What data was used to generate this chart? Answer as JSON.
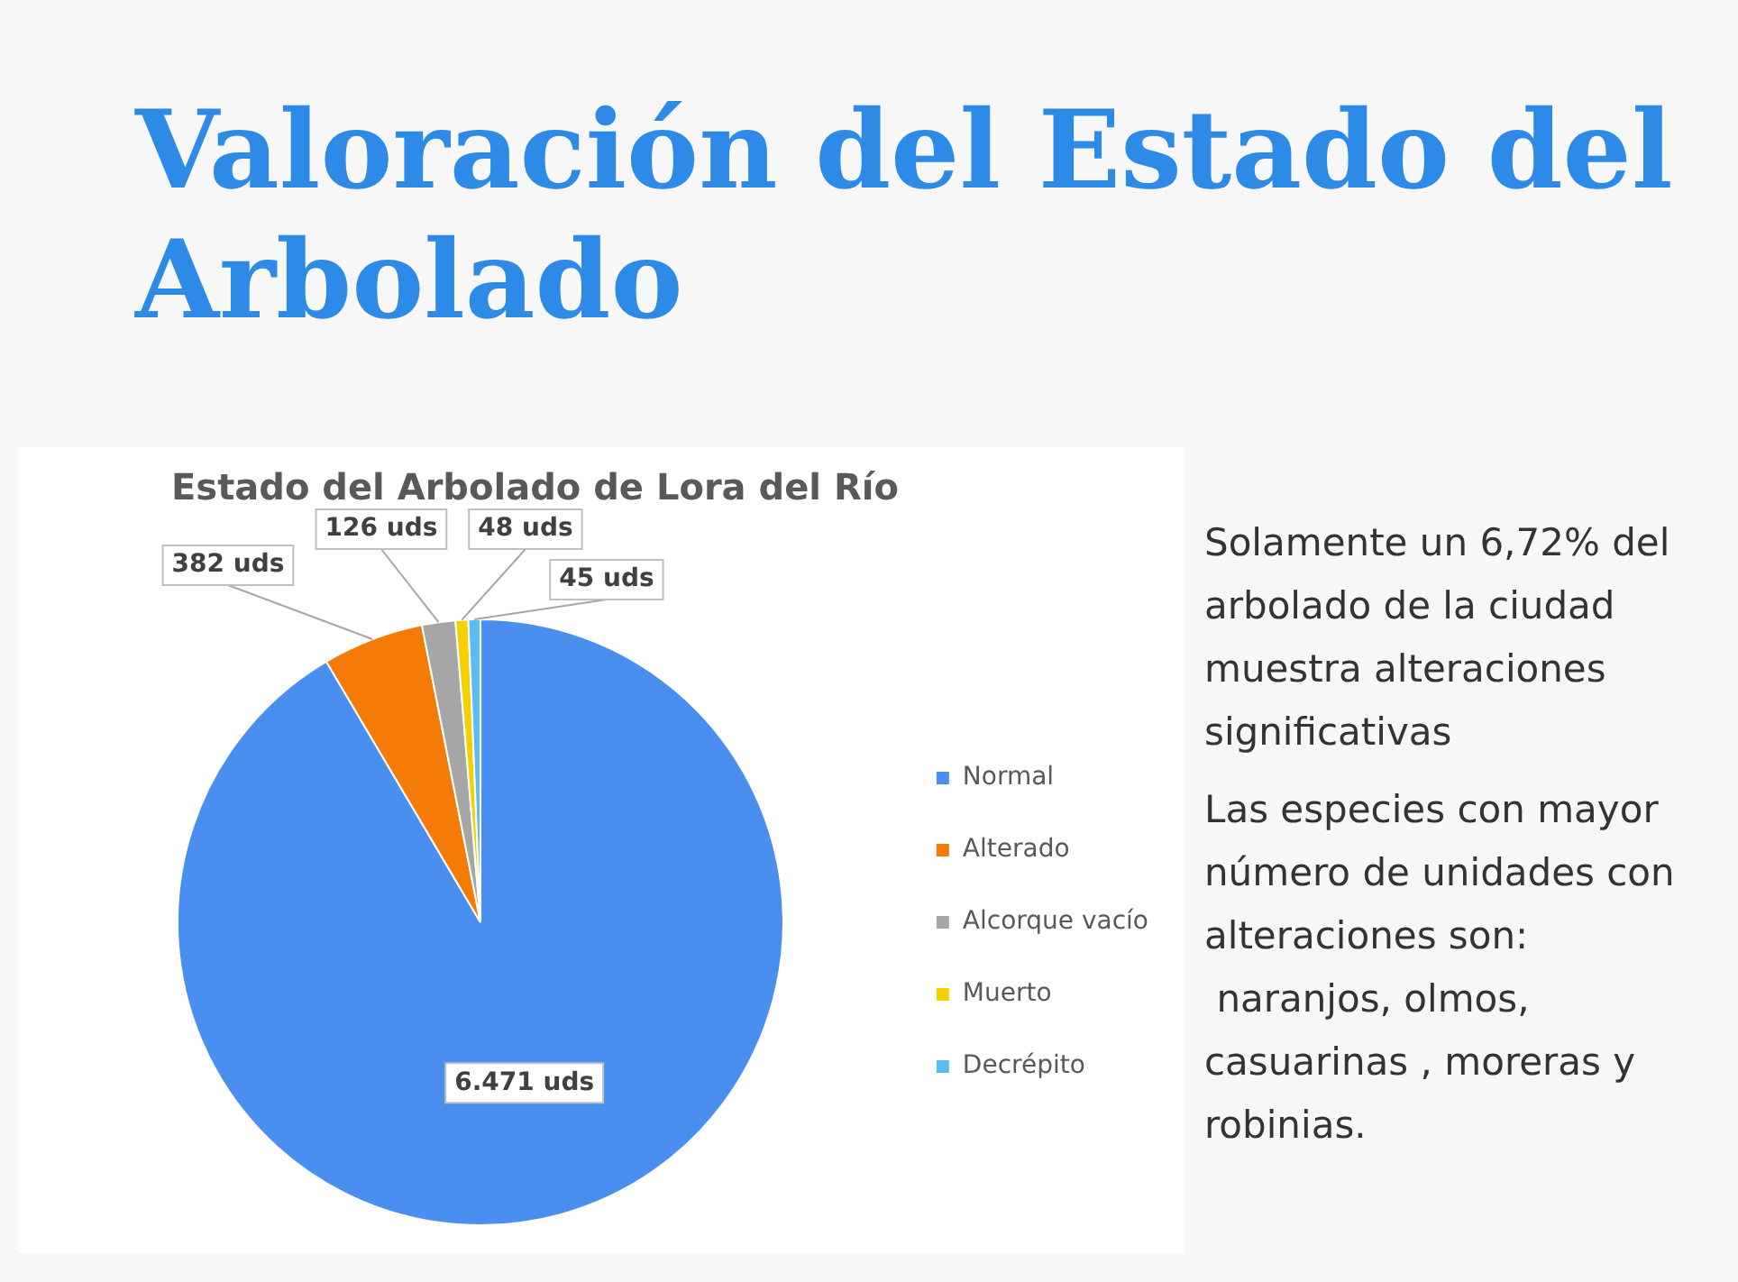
{
  "chart_data": {
    "type": "pie",
    "title": "Valoración del Estado del Arbolado",
    "subtitle": "Estado del Arbolado de Lora del Río",
    "categories": [
      "Normal",
      "Alterado",
      "Alcorque vacío",
      "Muerto",
      "Decrépito"
    ],
    "values": [
      6471,
      382,
      126,
      48,
      45
    ],
    "value_labels": [
      "6.471 uds",
      "382 uds",
      "126 uds",
      "48 uds",
      "45 uds"
    ],
    "colors": [
      "#4a8ff0",
      "#f47b07",
      "#a6a6a6",
      "#f5d000",
      "#5bbcf0"
    ],
    "legend": "right",
    "annotations": [
      "Solamente un 6,72% del arbolado de la ciudad muestra alteraciones significativas",
      "Las especies con mayor número de unidades con alteraciones son:\n naranjos, olmos, casuarinas , moreras y robinias."
    ]
  }
}
